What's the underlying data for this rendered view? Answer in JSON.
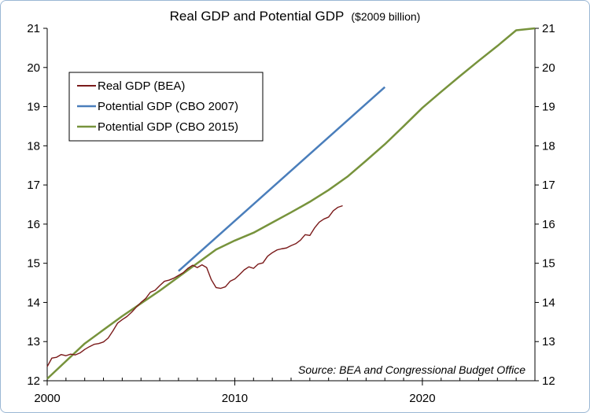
{
  "chart_data": {
    "type": "line",
    "title": "Real GDP and Potential GDP",
    "title_unit": "($2009 billion)",
    "xlim": [
      2000,
      2026
    ],
    "ylim": [
      12,
      21
    ],
    "x_ticks": [
      "2000",
      "2010",
      "2020"
    ],
    "x_tick_values": [
      2000,
      2010,
      2020
    ],
    "y_ticks": [
      "12",
      "13",
      "14",
      "15",
      "16",
      "17",
      "18",
      "19",
      "20",
      "21"
    ],
    "y_tick_values": [
      12,
      13,
      14,
      15,
      16,
      17,
      18,
      19,
      20,
      21
    ],
    "grid": false,
    "legend_position": "top-left",
    "source_note": "Source: BEA and Congressional Budget Office",
    "series": [
      {
        "name": "Real GDP (BEA)",
        "color": "#7a1a1a",
        "x": [
          2000.0,
          2000.25,
          2000.5,
          2000.75,
          2001.0,
          2001.25,
          2001.5,
          2001.75,
          2002.0,
          2002.25,
          2002.5,
          2002.75,
          2003.0,
          2003.25,
          2003.5,
          2003.75,
          2004.0,
          2004.25,
          2004.5,
          2004.75,
          2005.0,
          2005.25,
          2005.5,
          2005.75,
          2006.0,
          2006.25,
          2006.5,
          2006.75,
          2007.0,
          2007.25,
          2007.5,
          2007.75,
          2008.0,
          2008.25,
          2008.5,
          2008.75,
          2009.0,
          2009.25,
          2009.5,
          2009.75,
          2010.0,
          2010.25,
          2010.5,
          2010.75,
          2011.0,
          2011.25,
          2011.5,
          2011.75,
          2012.0,
          2012.25,
          2012.5,
          2012.75,
          2013.0,
          2013.25,
          2013.5,
          2013.75,
          2014.0,
          2014.25,
          2014.5,
          2014.75,
          2015.0,
          2015.25,
          2015.5,
          2015.75
        ],
        "y": [
          12.36,
          12.58,
          12.6,
          12.67,
          12.64,
          12.68,
          12.66,
          12.71,
          12.8,
          12.87,
          12.93,
          12.95,
          12.99,
          13.09,
          13.27,
          13.47,
          13.56,
          13.64,
          13.75,
          13.88,
          14.0,
          14.1,
          14.26,
          14.31,
          14.43,
          14.54,
          14.57,
          14.62,
          14.69,
          14.76,
          14.87,
          14.95,
          14.89,
          14.96,
          14.89,
          14.58,
          14.38,
          14.36,
          14.4,
          14.54,
          14.6,
          14.71,
          14.83,
          14.91,
          14.87,
          14.98,
          15.01,
          15.18,
          15.27,
          15.34,
          15.37,
          15.39,
          15.45,
          15.5,
          15.59,
          15.73,
          15.71,
          15.9,
          16.05,
          16.13,
          16.18,
          16.34,
          16.43,
          16.47
        ]
      },
      {
        "name": "Potential GDP (CBO 2007)",
        "color": "#4a7ebb",
        "x": [
          2007.0,
          2018.0
        ],
        "y": [
          14.8,
          19.5
        ]
      },
      {
        "name": "Potential GDP (CBO 2015)",
        "color": "#77933c",
        "x": [
          2000.0,
          2002.0,
          2004.0,
          2006.0,
          2008.0,
          2009.0,
          2010.0,
          2011.0,
          2012.0,
          2013.0,
          2014.0,
          2015.0,
          2016.0,
          2017.0,
          2018.0,
          2019.0,
          2020.0,
          2021.0,
          2022.0,
          2023.0,
          2024.0,
          2025.0,
          2026.0
        ],
        "y": [
          12.05,
          12.95,
          13.65,
          14.3,
          15.0,
          15.35,
          15.58,
          15.78,
          16.04,
          16.3,
          16.57,
          16.87,
          17.21,
          17.62,
          18.04,
          18.5,
          18.97,
          19.38,
          19.78,
          20.17,
          20.55,
          20.95,
          21.35
        ]
      }
    ]
  }
}
